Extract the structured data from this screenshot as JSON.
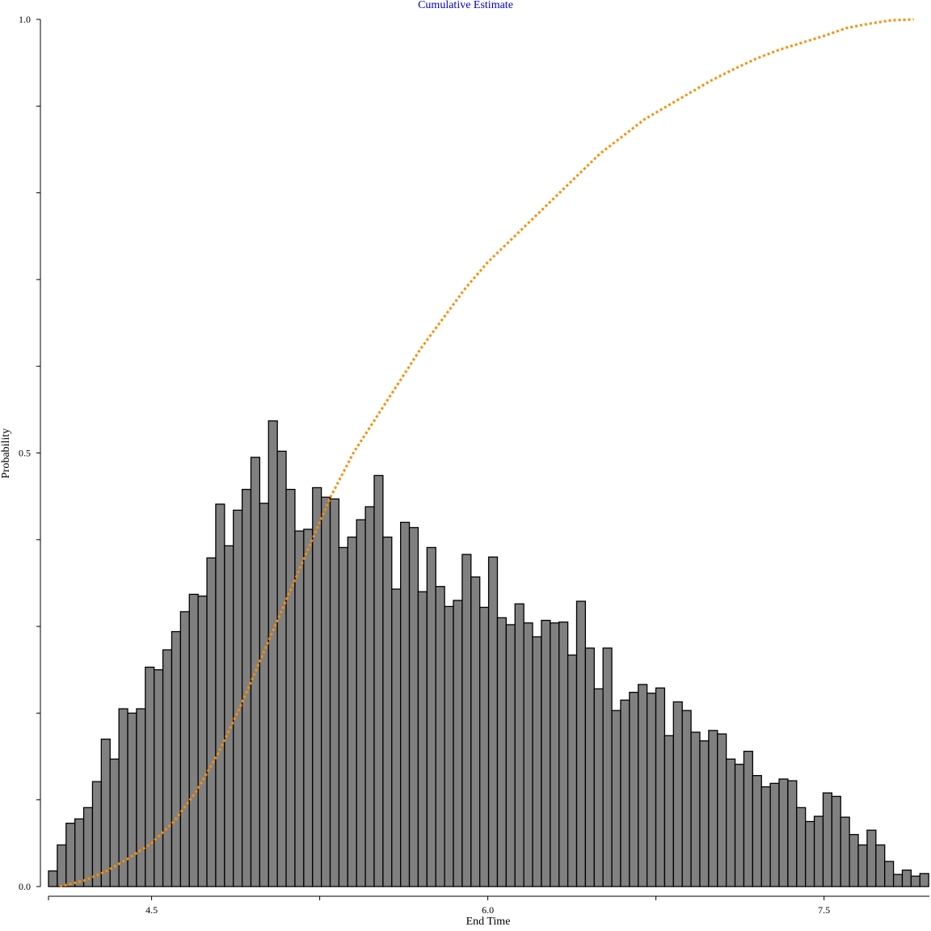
{
  "colors": {
    "bar_fill": "#808080",
    "bar_stroke": "#000000",
    "cumulative_line": "#ff8c00",
    "title": "#0000cc",
    "axis": "#000000"
  },
  "chart_data": {
    "type": "bar",
    "title": "Cumulative Estimate",
    "xlabel": "End Time",
    "ylabel": "Probability",
    "xlim": [
      4.04,
      7.97
    ],
    "ylim": [
      0,
      1.0
    ],
    "x_ticks": [
      4.5,
      6.0,
      7.5
    ],
    "x_minor_ticks": [
      4.04,
      4.5,
      5.25,
      6.0,
      6.75,
      7.5
    ],
    "y_ticks": [
      0.0,
      0.5,
      1.0
    ],
    "y_minor_ticks": [
      0.0,
      0.1,
      0.2,
      0.3,
      0.4,
      0.5,
      0.6,
      0.7,
      0.8,
      0.9,
      1.0
    ],
    "grid": false,
    "legend": "none",
    "bin_start": 4.04,
    "bin_width": 0.03927,
    "histogram": [
      0.018,
      0.048,
      0.073,
      0.078,
      0.091,
      0.121,
      0.17,
      0.147,
      0.205,
      0.2,
      0.205,
      0.253,
      0.25,
      0.273,
      0.294,
      0.317,
      0.337,
      0.335,
      0.379,
      0.441,
      0.393,
      0.434,
      0.458,
      0.495,
      0.442,
      0.537,
      0.502,
      0.458,
      0.41,
      0.412,
      0.46,
      0.449,
      0.447,
      0.391,
      0.403,
      0.423,
      0.438,
      0.474,
      0.403,
      0.343,
      0.42,
      0.414,
      0.34,
      0.391,
      0.346,
      0.323,
      0.33,
      0.383,
      0.357,
      0.322,
      0.38,
      0.31,
      0.302,
      0.326,
      0.304,
      0.288,
      0.307,
      0.304,
      0.305,
      0.267,
      0.329,
      0.275,
      0.228,
      0.275,
      0.203,
      0.215,
      0.224,
      0.233,
      0.223,
      0.229,
      0.174,
      0.213,
      0.203,
      0.178,
      0.168,
      0.18,
      0.176,
      0.147,
      0.141,
      0.156,
      0.128,
      0.115,
      0.119,
      0.124,
      0.122,
      0.091,
      0.075,
      0.081,
      0.108,
      0.104,
      0.08,
      0.06,
      0.048,
      0.065,
      0.048,
      0.029,
      0.014,
      0.019,
      0.012,
      0.015
    ],
    "cumulative": {
      "x": [
        4.09,
        4.2,
        4.3,
        4.4,
        4.5,
        4.6,
        4.7,
        4.8,
        4.9,
        5.0,
        5.1,
        5.2,
        5.3,
        5.4,
        5.5,
        5.6,
        5.7,
        5.8,
        5.9,
        6.0,
        6.1,
        6.2,
        6.3,
        6.4,
        6.5,
        6.6,
        6.7,
        6.8,
        6.9,
        7.0,
        7.1,
        7.2,
        7.3,
        7.4,
        7.5,
        7.6,
        7.7,
        7.8,
        7.9
      ],
      "y": [
        0.0,
        0.007,
        0.018,
        0.033,
        0.05,
        0.075,
        0.11,
        0.155,
        0.21,
        0.27,
        0.33,
        0.39,
        0.45,
        0.5,
        0.54,
        0.58,
        0.62,
        0.655,
        0.69,
        0.72,
        0.745,
        0.77,
        0.795,
        0.82,
        0.845,
        0.865,
        0.885,
        0.9,
        0.915,
        0.93,
        0.943,
        0.955,
        0.965,
        0.973,
        0.981,
        0.99,
        0.995,
        0.999,
        1.0
      ]
    }
  }
}
